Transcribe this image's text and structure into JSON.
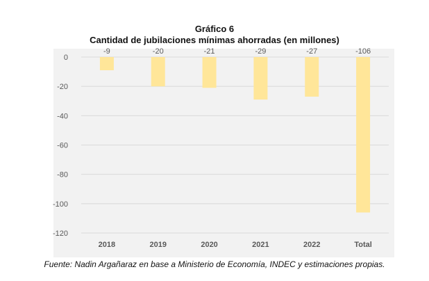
{
  "figure": {
    "title": "Gráfico 6",
    "subtitle": "Cantidad de jubilaciones mínimas ahorradas (en millones)",
    "source": "Fuente: Nadin Argañaraz en base a Ministerio de Economía, INDEC y estimaciones propias."
  },
  "chart_data": {
    "type": "bar",
    "title": "Gráfico 6",
    "subtitle": "Cantidad de jubilaciones mínimas ahorradas (en millones)",
    "categories": [
      "2018",
      "2019",
      "2020",
      "2021",
      "2022",
      "Total"
    ],
    "values": [
      -9,
      -20,
      -21,
      -29,
      -27,
      -106
    ],
    "data_labels": [
      "-9",
      "-20",
      "-21",
      "-29",
      "-27",
      "-106"
    ],
    "y_ticks": [
      0,
      -20,
      -40,
      -60,
      -80,
      -100,
      -120
    ],
    "ylim": [
      -120,
      0
    ],
    "grid": true,
    "legend": "none",
    "colors": {
      "bar": "#ffe699",
      "grid": "#d9d9d9",
      "plot_background": "#f2f2f2",
      "tick_text": "#595959"
    }
  }
}
